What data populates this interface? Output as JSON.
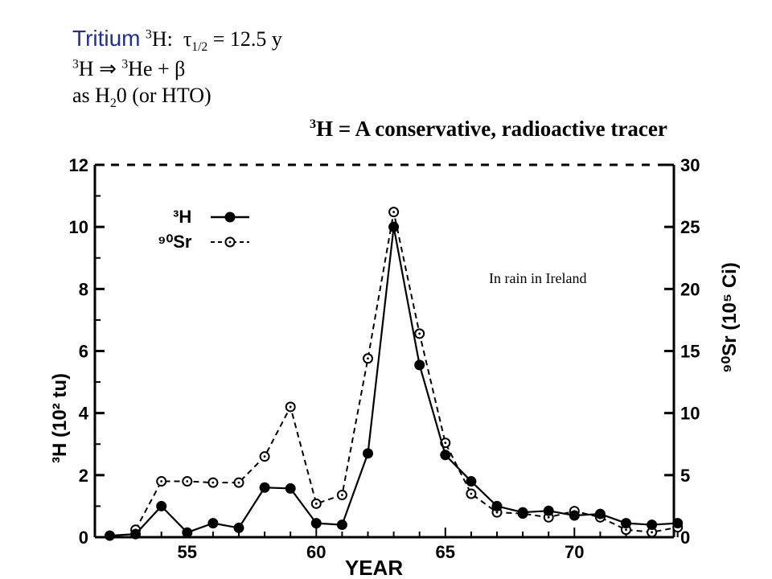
{
  "header": {
    "tritium_word": "Tritium",
    "tritium_nuclide_mass": "3",
    "tritium_nuclide_symbol": "H:",
    "halflife_symbol": "τ",
    "halflife_sub": "1/2",
    "halflife_value": " = 12.5 y",
    "decay_mass1": "3",
    "decay_h": "H ",
    "decay_arrow": "⇒",
    "decay_mass2": "3",
    "decay_rest": "He + β",
    "water_prefix": "as H",
    "water_sub": "2",
    "water_rest": "0 (or HTO)"
  },
  "subtitle": {
    "mass": "3",
    "text": "H = A conservative, radioactive tracer"
  },
  "chart_data": {
    "type": "line",
    "annotation": "In rain in Ireland",
    "xlabel": "YEAR",
    "ylabel_left": "³H (10² tu)",
    "ylabel_right": "⁹⁰Sr (10⁵ Ci)",
    "xlim": [
      52,
      74
    ],
    "ylim_left": [
      0,
      12
    ],
    "ylim_right": [
      0,
      30
    ],
    "x_ticks": [
      "55",
      "60",
      "65",
      "70"
    ],
    "y_ticks_left": [
      "0",
      "2",
      "4",
      "6",
      "8",
      "10",
      "12"
    ],
    "y_ticks_right": [
      "0",
      "5",
      "10",
      "15",
      "20",
      "25",
      "30"
    ],
    "legend": [
      {
        "label": "³H",
        "style": "solid-filled"
      },
      {
        "label": "⁹⁰Sr",
        "style": "dashed-open"
      }
    ],
    "series": [
      {
        "name": "³H",
        "axis": "left",
        "style": "solid",
        "marker": "filled-circle",
        "x": [
          52,
          53,
          54,
          55,
          56,
          57,
          58,
          59,
          60,
          61,
          62,
          63,
          64,
          65,
          66,
          67,
          68,
          69,
          70,
          71,
          72,
          73,
          74
        ],
        "y": [
          0.05,
          0.1,
          1.0,
          0.15,
          0.45,
          0.3,
          1.6,
          1.57,
          0.45,
          0.4,
          2.7,
          10.0,
          5.55,
          2.65,
          1.8,
          1.0,
          0.8,
          0.85,
          0.7,
          0.75,
          0.45,
          0.4,
          0.45
        ]
      },
      {
        "name": "⁹⁰Sr",
        "axis": "right",
        "style": "dashed",
        "marker": "open-circle-dot",
        "x": [
          53,
          54,
          55,
          56,
          57,
          58,
          59,
          60,
          61,
          62,
          63,
          64,
          65,
          66,
          67,
          68,
          69,
          70,
          71,
          72,
          73,
          74
        ],
        "y": [
          0.6,
          4.5,
          4.5,
          4.4,
          4.4,
          6.5,
          10.5,
          2.7,
          3.4,
          14.4,
          26.2,
          16.4,
          7.6,
          3.5,
          2.0,
          1.9,
          1.6,
          2.1,
          1.6,
          0.6,
          0.4,
          0.8
        ]
      }
    ]
  },
  "colors": {
    "title_word": "#1f2f9c",
    "ink": "#000000"
  }
}
